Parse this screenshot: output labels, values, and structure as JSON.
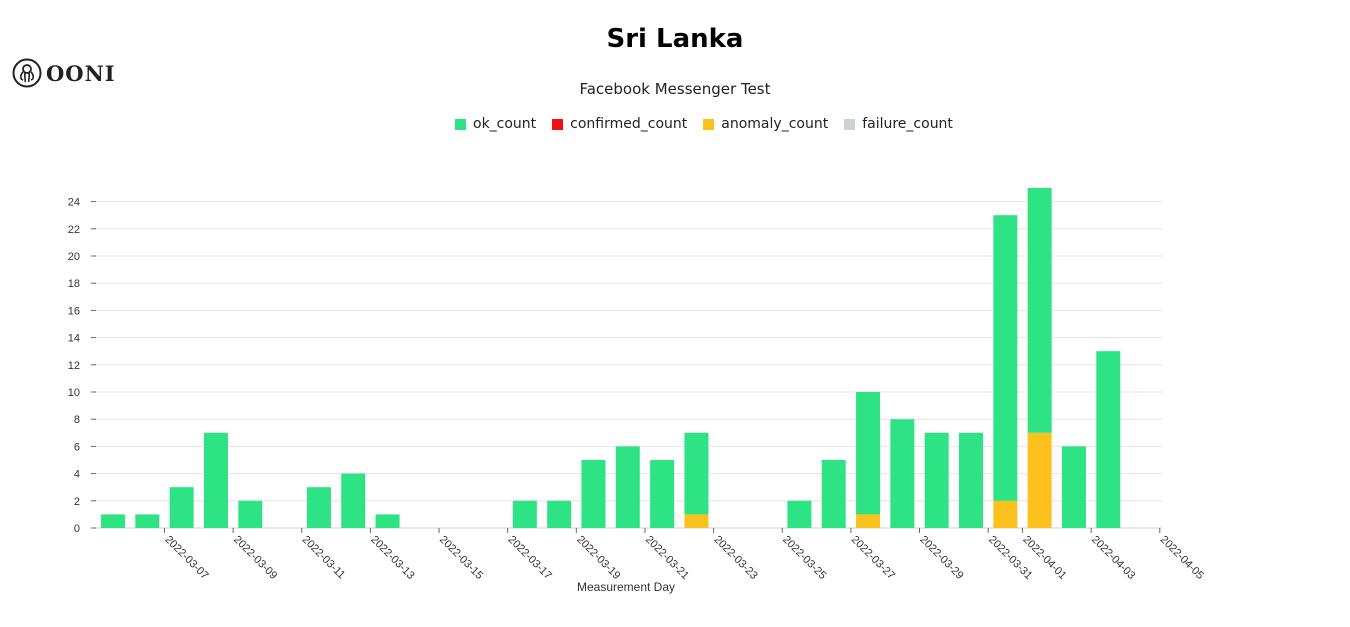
{
  "header": {
    "logo_text": "OONI",
    "title": "Sri Lanka",
    "subtitle": "Facebook Messenger Test"
  },
  "colors": {
    "ok": "#2ee383",
    "confirmed": "#f20f0f",
    "anomaly": "#fdc11d",
    "failure": "#cdd2d6"
  },
  "legend": [
    {
      "label": "ok_count",
      "color": "#2ee383",
      "icon": "square"
    },
    {
      "label": "confirmed_count",
      "color": "#f20f0f",
      "icon": "square"
    },
    {
      "label": "anomaly_count",
      "color": "#fdc11d",
      "icon": "square"
    },
    {
      "label": "failure_count",
      "color": "#cdd2d6",
      "icon": "square"
    }
  ],
  "chart_data": {
    "type": "bar",
    "stacked": true,
    "title": "Sri Lanka",
    "subtitle": "Facebook Messenger Test",
    "xlabel": "Measurement Day",
    "ylabel": "",
    "ylim": [
      0,
      25
    ],
    "yticks": [
      0,
      2,
      4,
      6,
      8,
      10,
      12,
      14,
      16,
      18,
      20,
      22,
      24
    ],
    "grid": true,
    "legend_position": "top-center",
    "categories": [
      "2022-03-06",
      "2022-03-07",
      "2022-03-08",
      "2022-03-09",
      "2022-03-10",
      "2022-03-11",
      "2022-03-12",
      "2022-03-13",
      "2022-03-14",
      "2022-03-15",
      "2022-03-16",
      "2022-03-17",
      "2022-03-18",
      "2022-03-19",
      "2022-03-20",
      "2022-03-21",
      "2022-03-22",
      "2022-03-23",
      "2022-03-24",
      "2022-03-25",
      "2022-03-26",
      "2022-03-27",
      "2022-03-28",
      "2022-03-29",
      "2022-03-30",
      "2022-03-31",
      "2022-04-01",
      "2022-04-02",
      "2022-04-03",
      "2022-04-04",
      "2022-04-05"
    ],
    "tick_labels": [
      "2022-03-07",
      "2022-03-09",
      "2022-03-11",
      "2022-03-13",
      "2022-03-15",
      "2022-03-17",
      "2022-03-19",
      "2022-03-21",
      "2022-03-23",
      "2022-03-25",
      "2022-03-27",
      "2022-03-29",
      "2022-03-31",
      "2022-04-01",
      "2022-04-03",
      "2022-04-05"
    ],
    "series": [
      {
        "name": "anomaly_count",
        "values": [
          0,
          0,
          0,
          0,
          0,
          0,
          0,
          0,
          0,
          0,
          0,
          0,
          0,
          0,
          0,
          0,
          0,
          1,
          0,
          0,
          0,
          0,
          1,
          0,
          0,
          0,
          2,
          7,
          0,
          0,
          0
        ]
      },
      {
        "name": "ok_count",
        "values": [
          1,
          1,
          3,
          7,
          2,
          0,
          3,
          4,
          1,
          0,
          0,
          0,
          2,
          2,
          5,
          6,
          5,
          6,
          0,
          0,
          2,
          5,
          9,
          8,
          7,
          7,
          21,
          18,
          6,
          13,
          0
        ]
      },
      {
        "name": "confirmed_count",
        "values": [
          0,
          0,
          0,
          0,
          0,
          0,
          0,
          0,
          0,
          0,
          0,
          0,
          0,
          0,
          0,
          0,
          0,
          0,
          0,
          0,
          0,
          0,
          0,
          0,
          0,
          0,
          0,
          0,
          0,
          0,
          0
        ]
      },
      {
        "name": "failure_count",
        "values": [
          0,
          0,
          0,
          0,
          0,
          0,
          0,
          0,
          0,
          0,
          0,
          0,
          0,
          0,
          0,
          0,
          0,
          0,
          0,
          0,
          0,
          0,
          0,
          0,
          0,
          0,
          0,
          0,
          0,
          0,
          0
        ]
      }
    ]
  }
}
